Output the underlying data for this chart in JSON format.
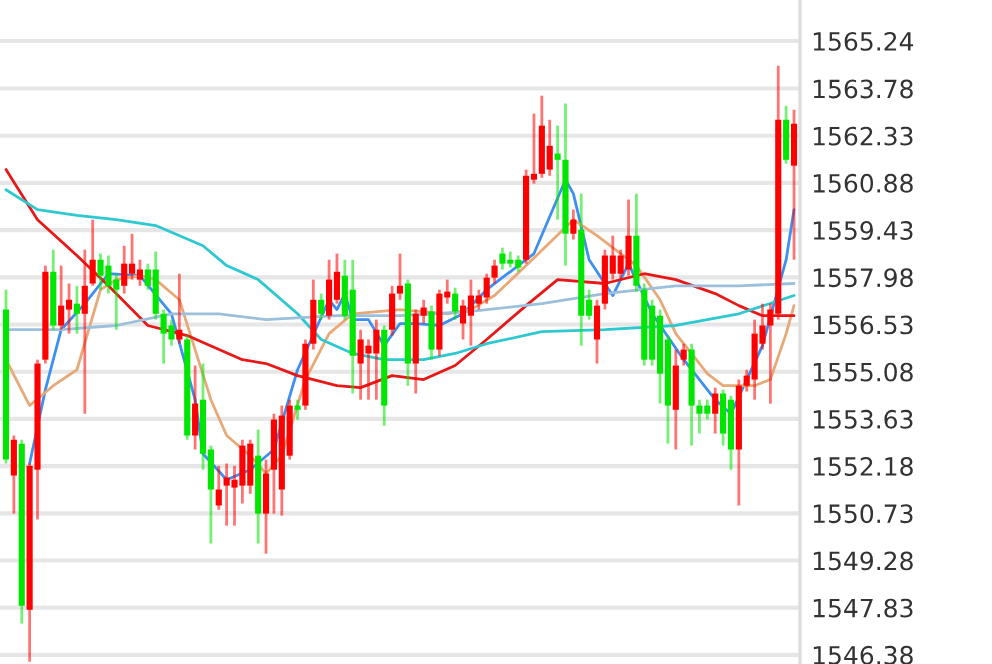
{
  "chart_data": {
    "type": "candlestick",
    "categories": [
      null,
      null,
      null,
      null,
      null,
      null,
      null,
      null,
      null,
      null,
      null,
      null,
      null,
      null,
      null,
      null,
      null,
      null,
      null,
      null,
      null,
      null,
      null,
      null,
      null,
      null,
      null,
      null,
      null,
      null,
      null,
      null,
      null,
      null,
      null,
      null,
      null,
      null,
      null,
      null,
      null,
      null,
      null,
      null,
      null,
      null,
      null,
      null,
      null,
      null,
      null,
      null,
      null,
      null,
      null,
      null,
      null,
      null,
      null,
      null,
      null,
      null,
      null,
      null,
      null,
      null,
      null,
      null,
      null,
      null,
      null,
      null,
      null,
      null,
      null,
      null,
      null,
      null,
      null,
      null,
      null,
      null,
      null,
      null,
      null,
      null,
      null,
      null,
      null,
      null,
      null,
      null,
      null,
      null,
      null,
      null,
      null,
      null,
      null,
      null,
      null
    ],
    "ohlc": [
      [
        1556.99,
        1557.6,
        1552.26,
        1552.38
      ],
      [
        1551.89,
        1553.12,
        1550.72,
        1552.99
      ],
      [
        1552.87,
        1552.99,
        1547.34,
        1547.89
      ],
      [
        1547.77,
        1552.26,
        1546.17,
        1552.19
      ],
      [
        1552.07,
        1555.45,
        1550.54,
        1555.33
      ],
      [
        1555.45,
        1558.34,
        1555.33,
        1558.15
      ],
      [
        1558.15,
        1558.83,
        1556.37,
        1556.5
      ],
      [
        1556.5,
        1558.34,
        1556.37,
        1557.11
      ],
      [
        1556.99,
        1557.79,
        1556.25,
        1557.29
      ],
      [
        1557.17,
        1557.72,
        1556.25,
        1556.86
      ],
      [
        1556.86,
        1558.83,
        1553.79,
        1557.72
      ],
      [
        1557.79,
        1559.75,
        1557.72,
        1558.52
      ],
      [
        1558.52,
        1558.71,
        1557.6,
        1558.03
      ],
      [
        1558.34,
        1558.65,
        1557.48,
        1557.72
      ],
      [
        1557.91,
        1558.09,
        1556.37,
        1557.6
      ],
      [
        1557.72,
        1558.95,
        1557.48,
        1558.4
      ],
      [
        1558.09,
        1559.32,
        1557.91,
        1558.4
      ],
      [
        1557.91,
        1558.52,
        1557.72,
        1558.22
      ],
      [
        1558.22,
        1558.4,
        1557.6,
        1557.72
      ],
      [
        1558.22,
        1558.77,
        1556.68,
        1556.86
      ],
      [
        1556.86,
        1556.99,
        1555.33,
        1556.25
      ],
      [
        1556.5,
        1556.68,
        1555.88,
        1556.07
      ],
      [
        1556.07,
        1558.09,
        1555.94,
        1556.37
      ],
      [
        1556.07,
        1556.19,
        1552.99,
        1553.12
      ],
      [
        1553.12,
        1555.27,
        1552.69,
        1554.1
      ],
      [
        1554.22,
        1555.33,
        1552.07,
        1552.56
      ],
      [
        1552.69,
        1552.81,
        1549.8,
        1551.46
      ],
      [
        1550.97,
        1552.19,
        1550.84,
        1551.46
      ],
      [
        1551.58,
        1552.26,
        1550.35,
        1551.83
      ],
      [
        1551.52,
        1552.19,
        1550.35,
        1551.76
      ],
      [
        1551.58,
        1552.99,
        1551.03,
        1552.81
      ],
      [
        1551.58,
        1552.99,
        1551.33,
        1552.87
      ],
      [
        1552.5,
        1553.3,
        1549.8,
        1550.72
      ],
      [
        1550.72,
        1552.38,
        1549.49,
        1551.95
      ],
      [
        1552.07,
        1553.79,
        1550.72,
        1553.61
      ],
      [
        1551.46,
        1554.04,
        1550.66,
        1553.73
      ],
      [
        1552.5,
        1554.22,
        1552.38,
        1554.04
      ],
      [
        1554.04,
        1554.22,
        1553.61,
        1553.91
      ],
      [
        1554.04,
        1556.07,
        1553.91,
        1555.94
      ],
      [
        1555.94,
        1557.91,
        1555.76,
        1557.29
      ],
      [
        1557.29,
        1557.48,
        1556.68,
        1556.86
      ],
      [
        1556.8,
        1558.52,
        1556.68,
        1557.91
      ],
      [
        1557.29,
        1558.71,
        1557.17,
        1558.15
      ],
      [
        1558.03,
        1558.52,
        1556.68,
        1556.8
      ],
      [
        1557.6,
        1558.52,
        1554.41,
        1555.57
      ],
      [
        1555.33,
        1556.37,
        1554.22,
        1556.07
      ],
      [
        1555.64,
        1556.07,
        1554.22,
        1555.88
      ],
      [
        1555.64,
        1556.68,
        1554.22,
        1556.37
      ],
      [
        1556.37,
        1556.5,
        1553.42,
        1554.04
      ],
      [
        1556.37,
        1557.72,
        1556.19,
        1557.48
      ],
      [
        1557.48,
        1558.71,
        1557.29,
        1557.72
      ],
      [
        1557.79,
        1557.91,
        1554.65,
        1555.33
      ],
      [
        1555.33,
        1556.99,
        1554.41,
        1556.86
      ],
      [
        1556.8,
        1557.29,
        1556.56,
        1557.05
      ],
      [
        1556.93,
        1557.11,
        1555.45,
        1555.76
      ],
      [
        1555.76,
        1557.6,
        1555.57,
        1557.48
      ],
      [
        1557.36,
        1557.91,
        1557.17,
        1557.54
      ],
      [
        1557.48,
        1557.66,
        1556.68,
        1556.93
      ],
      [
        1556.56,
        1557.29,
        1556.07,
        1557.11
      ],
      [
        1556.8,
        1557.91,
        1555.88,
        1557.42
      ],
      [
        1557.17,
        1557.6,
        1556.99,
        1557.42
      ],
      [
        1557.36,
        1558.09,
        1557.17,
        1557.97
      ],
      [
        1557.97,
        1558.52,
        1557.79,
        1558.34
      ],
      [
        1558.71,
        1558.89,
        1558.22,
        1558.4
      ],
      [
        1558.52,
        1558.77,
        1558.28,
        1558.4
      ],
      [
        1558.52,
        1558.65,
        1558.15,
        1558.28
      ],
      [
        1558.52,
        1561.29,
        1558.4,
        1561.1
      ],
      [
        1560.98,
        1563.01,
        1560.86,
        1561.16
      ],
      [
        1561.16,
        1563.56,
        1561.04,
        1562.64
      ],
      [
        1561.29,
        1562.82,
        1561.1,
        1562.02
      ],
      [
        1561.78,
        1562.64,
        1559.75,
        1561.59
      ],
      [
        1561.59,
        1563.32,
        1558.34,
        1559.32
      ],
      [
        1559.32,
        1560.06,
        1559.14,
        1559.75
      ],
      [
        1559.44,
        1560.55,
        1555.88,
        1556.8
      ],
      [
        1557.29,
        1557.6,
        1556.68,
        1556.8
      ],
      [
        1556.07,
        1557.29,
        1555.33,
        1557.11
      ],
      [
        1557.17,
        1558.83,
        1556.99,
        1558.65
      ],
      [
        1558.09,
        1559.26,
        1557.91,
        1558.65
      ],
      [
        1558.09,
        1558.83,
        1557.91,
        1558.65
      ],
      [
        1558.22,
        1560.37,
        1558.03,
        1559.26
      ],
      [
        1559.26,
        1560.55,
        1557.54,
        1557.72
      ],
      [
        1557.6,
        1557.79,
        1555.27,
        1555.45
      ],
      [
        1557.11,
        1557.29,
        1555.27,
        1555.45
      ],
      [
        1556.8,
        1556.99,
        1554.1,
        1555.02
      ],
      [
        1556.07,
        1556.19,
        1552.87,
        1554.04
      ],
      [
        1553.91,
        1555.76,
        1552.69,
        1555.27
      ],
      [
        1555.45,
        1555.94,
        1555.27,
        1555.76
      ],
      [
        1555.76,
        1555.94,
        1552.81,
        1554.04
      ],
      [
        1554.04,
        1554.22,
        1553.18,
        1553.79
      ],
      [
        1554.04,
        1554.22,
        1553.61,
        1553.79
      ],
      [
        1553.79,
        1554.59,
        1553.18,
        1554.41
      ],
      [
        1554.41,
        1554.53,
        1552.81,
        1553.18
      ],
      [
        1554.22,
        1554.34,
        1552.07,
        1552.69
      ],
      [
        1552.69,
        1554.84,
        1550.97,
        1554.65
      ],
      [
        1554.65,
        1555.14,
        1554.47,
        1554.96
      ],
      [
        1554.84,
        1556.68,
        1554.22,
        1556.25
      ],
      [
        1555.94,
        1557.17,
        1555.76,
        1556.5
      ],
      [
        1556.5,
        1557.17,
        1554.1,
        1556.99
      ],
      [
        1556.86,
        1564.48,
        1556.68,
        1562.82
      ],
      [
        1562.82,
        1563.25,
        1561.47,
        1561.59
      ],
      [
        1561.41,
        1563.13,
        1558.52,
        1562.7
      ]
    ],
    "colors": [
      "#00e600",
      "#ff0000",
      "#00e600",
      "#ff0000",
      "#ff0000",
      "#ff0000",
      "#00e600",
      "#ff0000",
      "#ff0000",
      "#00e600",
      "#ff0000",
      "#ff0000",
      "#00e600",
      "#00e600",
      "#00e600",
      "#ff0000",
      "#ff0000",
      "#ff0000",
      "#00e600",
      "#00e600",
      "#00e600",
      "#00e600",
      "#ff0000",
      "#00e600",
      "#ff0000",
      "#00e600",
      "#00e600",
      "#ff0000",
      "#ff0000",
      "#ff0000",
      "#ff0000",
      "#ff0000",
      "#00e600",
      "#ff0000",
      "#ff0000",
      "#ff0000",
      "#ff0000",
      "#00e600",
      "#ff0000",
      "#ff0000",
      "#00e600",
      "#ff0000",
      "#ff0000",
      "#00e600",
      "#00e600",
      "#ff0000",
      "#ff0000",
      "#ff0000",
      "#00e600",
      "#ff0000",
      "#ff0000",
      "#00e600",
      "#ff0000",
      "#ff0000",
      "#00e600",
      "#ff0000",
      "#ff0000",
      "#00e600",
      "#ff0000",
      "#ff0000",
      "#ff0000",
      "#ff0000",
      "#ff0000",
      "#00e600",
      "#00e600",
      "#00e600",
      "#ff0000",
      "#ff0000",
      "#ff0000",
      "#ff0000",
      "#00e600",
      "#00e600",
      "#ff0000",
      "#00e600",
      "#00e600",
      "#ff0000",
      "#ff0000",
      "#ff0000",
      "#ff0000",
      "#ff0000",
      "#00e600",
      "#00e600",
      "#00e600",
      "#00e600",
      "#00e600",
      "#ff0000",
      "#ff0000",
      "#00e600",
      "#00e600",
      "#00e600",
      "#ff0000",
      "#00e600",
      "#00e600",
      "#ff0000",
      "#ff0000",
      "#ff0000",
      "#ff0000",
      "#ff0000",
      "#ff0000",
      "#00e600",
      "#ff0000"
    ],
    "series": [
      {
        "type": "line",
        "color": "#3d8ff0",
        "values": [
          null,
          null,
          null,
          1552.26,
          null,
          1554.53,
          null,
          1556.37,
          null,
          null,
          1557.17,
          null,
          null,
          1558.09,
          null,
          null,
          null,
          1558.03,
          null,
          null,
          null,
          1556.86,
          null,
          null,
          1554.22,
          1552.56,
          null,
          null,
          1551.76,
          null,
          null,
          1552.07,
          null,
          null,
          1552.69,
          null,
          null,
          1555.14,
          null,
          null,
          null,
          1557.29,
          1556.99,
          1557.48,
          1556.68,
          null,
          1556.68,
          null,
          1555.88,
          null,
          1556.56,
          null,
          1556.56,
          null,
          null,
          1556.5,
          null,
          null,
          1556.86,
          null,
          null,
          1557.6,
          null,
          null,
          null,
          1558.34,
          null,
          1558.71,
          null,
          null,
          null,
          1560.98,
          1560.55,
          null,
          1558.52,
          null,
          null,
          1557.42,
          null,
          1558.4,
          null,
          null,
          1556.86,
          null,
          null,
          null,
          1555.45,
          null,
          null,
          null,
          1554.22,
          null,
          1553.79,
          null,
          null,
          null,
          1555.88,
          null,
          null,
          1558.52,
          1560.06
        ]
      },
      {
        "type": "line",
        "color": "#e8a878",
        "values": [
          1555.45,
          null,
          null,
          1554.04,
          null,
          null,
          1554.65,
          null,
          null,
          1555.14,
          null,
          null,
          1557.6,
          null,
          1557.91,
          null,
          null,
          1558.03,
          null,
          1557.91,
          null,
          null,
          1557.29,
          null,
          1555.76,
          null,
          1554.22,
          null,
          1553.12,
          null,
          null,
          1552.5,
          null,
          1551.95,
          null,
          1552.5,
          null,
          null,
          1554.84,
          null,
          null,
          1556.25,
          null,
          null,
          1556.86,
          null,
          null,
          null,
          null,
          null,
          1556.99,
          null,
          null,
          null,
          null,
          null,
          1556.86,
          null,
          null,
          1556.99,
          null,
          null,
          1557.42,
          null,
          null,
          null,
          1558.34,
          null,
          null,
          null,
          null,
          null,
          1559.75,
          null,
          null,
          1559.26,
          null,
          null,
          1558.71,
          null,
          1558.34,
          null,
          null,
          1557.29,
          null,
          1556.25,
          null,
          null,
          null,
          1555.02,
          null,
          1554.65,
          null,
          null,
          null,
          1554.65,
          null,
          1554.84,
          null,
          1556.25,
          1557.11
        ]
      },
      {
        "type": "line",
        "color": "#e81818",
        "values": [
          1561.29,
          null,
          null,
          null,
          1559.75,
          null,
          null,
          null,
          null,
          1558.65,
          null,
          null,
          null,
          1557.72,
          null,
          null,
          null,
          null,
          1556.5,
          null,
          null,
          null,
          null,
          1556.19,
          null,
          null,
          null,
          null,
          null,
          null,
          1555.45,
          null,
          null,
          1555.33,
          null,
          null,
          null,
          1554.96,
          null,
          null,
          null,
          null,
          1554.65,
          null,
          null,
          1554.59,
          null,
          null,
          null,
          1554.96,
          null,
          null,
          null,
          1554.84,
          null,
          null,
          null,
          1555.27,
          null,
          null,
          null,
          1556.07,
          null,
          null,
          null,
          null,
          1557.11,
          null,
          null,
          null,
          1557.91,
          null,
          null,
          null,
          null,
          null,
          1557.79,
          null,
          null,
          null,
          null,
          1558.09,
          null,
          null,
          null,
          1557.91,
          null,
          null,
          null,
          null,
          1557.48,
          null,
          null,
          1557.11,
          null,
          null,
          1556.8,
          null,
          null,
          null,
          1556.8
        ]
      },
      {
        "type": "line",
        "color": "#2ec8d0",
        "values": [
          1560.67,
          null,
          null,
          null,
          1560.06,
          null,
          null,
          null,
          null,
          1559.88,
          null,
          null,
          null,
          null,
          1559.75,
          null,
          null,
          null,
          null,
          1559.57,
          null,
          null,
          null,
          null,
          null,
          1558.95,
          null,
          null,
          1558.34,
          null,
          null,
          null,
          1557.91,
          null,
          null,
          null,
          null,
          1556.86,
          null,
          null,
          1556.07,
          null,
          null,
          null,
          1555.64,
          null,
          null,
          null,
          1555.45,
          null,
          null,
          null,
          null,
          1555.45,
          null,
          null,
          null,
          1555.64,
          null,
          null,
          null,
          1555.94,
          null,
          null,
          null,
          null,
          null,
          null,
          1556.31,
          null,
          null,
          null,
          null,
          null,
          null,
          null,
          1556.37,
          null,
          null,
          null,
          null,
          null,
          null,
          null,
          null,
          1556.5,
          null,
          null,
          null,
          null,
          null,
          null,
          null,
          1556.86,
          null,
          null,
          null,
          null,
          null,
          null,
          1557.42
        ]
      },
      {
        "type": "line",
        "color": "#9cc0dc",
        "values": [
          1556.37,
          null,
          null,
          null,
          null,
          null,
          null,
          1556.37,
          null,
          null,
          null,
          null,
          null,
          null,
          1556.5,
          null,
          null,
          null,
          null,
          null,
          null,
          1556.86,
          null,
          null,
          null,
          null,
          null,
          1556.86,
          null,
          null,
          null,
          null,
          null,
          1556.68,
          null,
          null,
          null,
          null,
          null,
          null,
          null,
          null,
          1556.8,
          null,
          null,
          null,
          null,
          null,
          null,
          null,
          1556.8,
          null,
          null,
          null,
          null,
          null,
          null,
          null,
          null,
          1556.93,
          null,
          null,
          null,
          null,
          null,
          null,
          null,
          null,
          1557.17,
          null,
          null,
          null,
          null,
          null,
          null,
          null,
          1557.48,
          null,
          null,
          null,
          null,
          null,
          null,
          null,
          null,
          1557.72,
          null,
          null,
          null,
          null,
          null,
          null,
          null,
          1557.72,
          null,
          null,
          null,
          null,
          null,
          null,
          1557.79
        ]
      }
    ],
    "ylim": [
      1546.1,
      1566.5
    ],
    "yticks": [
      1546.38,
      1547.83,
      1549.28,
      1550.73,
      1552.18,
      1553.63,
      1555.08,
      1556.53,
      1557.98,
      1559.43,
      1560.88,
      1562.33,
      1563.78,
      1565.24
    ],
    "grid": "y",
    "tick_labels": "y"
  }
}
